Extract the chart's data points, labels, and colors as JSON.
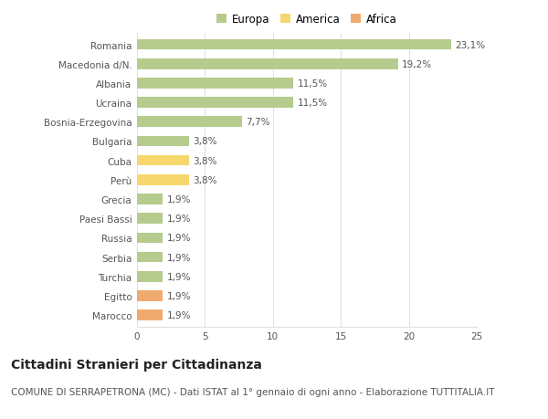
{
  "categories": [
    "Marocco",
    "Egitto",
    "Turchia",
    "Serbia",
    "Russia",
    "Paesi Bassi",
    "Grecia",
    "Perù",
    "Cuba",
    "Bulgaria",
    "Bosnia-Erzegovina",
    "Ucraina",
    "Albania",
    "Macedonia d/N.",
    "Romania"
  ],
  "values": [
    1.9,
    1.9,
    1.9,
    1.9,
    1.9,
    1.9,
    1.9,
    3.8,
    3.8,
    3.8,
    7.7,
    11.5,
    11.5,
    19.2,
    23.1
  ],
  "continents": [
    "Africa",
    "Africa",
    "Europa",
    "Europa",
    "Europa",
    "Europa",
    "Europa",
    "America",
    "America",
    "Europa",
    "Europa",
    "Europa",
    "Europa",
    "Europa",
    "Europa"
  ],
  "labels": [
    "1,9%",
    "1,9%",
    "1,9%",
    "1,9%",
    "1,9%",
    "1,9%",
    "1,9%",
    "3,8%",
    "3,8%",
    "3,8%",
    "7,7%",
    "11,5%",
    "11,5%",
    "19,2%",
    "23,1%"
  ],
  "colors": {
    "Europa": "#b5cc8e",
    "America": "#f5d76e",
    "Africa": "#f0aa70"
  },
  "title": "Cittadini Stranieri per Cittadinanza",
  "subtitle": "COMUNE DI SERRAPETRONA (MC) - Dati ISTAT al 1° gennaio di ogni anno - Elaborazione TUTTITALIA.IT",
  "xlim": [
    0,
    25
  ],
  "xticks": [
    0,
    5,
    10,
    15,
    20,
    25
  ],
  "background_color": "#ffffff",
  "grid_color": "#e0e0e0",
  "bar_height": 0.55,
  "title_fontsize": 10,
  "subtitle_fontsize": 7.5,
  "label_fontsize": 7.5,
  "tick_fontsize": 7.5,
  "legend_fontsize": 8.5
}
